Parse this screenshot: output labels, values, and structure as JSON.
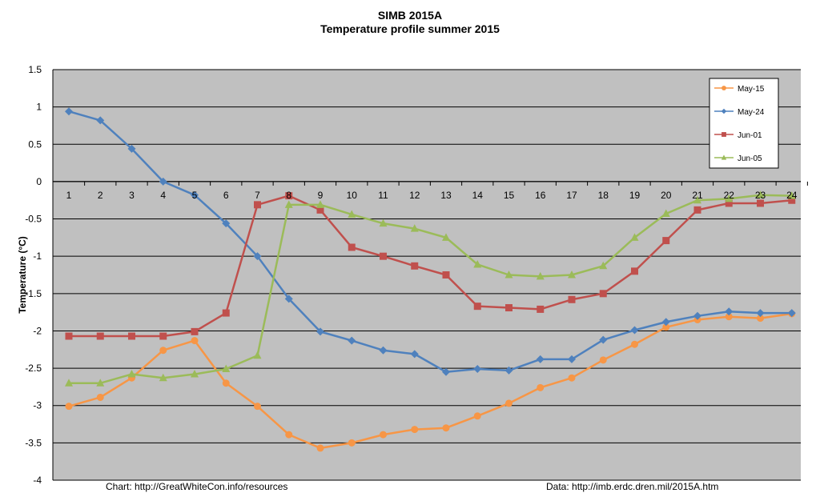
{
  "chart_data": {
    "type": "line",
    "title": "SIMB 2015A",
    "subtitle": "Temperature profile summer 2015",
    "xlabel": "",
    "ylabel": "Temperature (°C)",
    "ylim": [
      -4,
      1.5
    ],
    "yticks": [
      1.5,
      1,
      0.5,
      0,
      -0.5,
      -1,
      -1.5,
      -2,
      -2.5,
      -3,
      -3.5,
      -4
    ],
    "ytick_labels": [
      "1.5",
      "1",
      "0.5",
      "0",
      "-0.5",
      "-1",
      "-1.5",
      "-2",
      "-2.5",
      "-3",
      "-3.5",
      "-4"
    ],
    "categories": [
      "1",
      "2",
      "3",
      "4",
      "5",
      "6",
      "7",
      "8",
      "9",
      "10",
      "11",
      "12",
      "13",
      "14",
      "15",
      "16",
      "17",
      "18",
      "19",
      "20",
      "21",
      "22",
      "23",
      "24"
    ],
    "grid": true,
    "legend_position": "top-right",
    "series": [
      {
        "name": "May-15",
        "color": "#f79646",
        "marker": "circle",
        "values": [
          -3.01,
          -2.89,
          -2.63,
          -2.26,
          -2.13,
          -2.7,
          -3.01,
          -3.39,
          -3.57,
          -3.5,
          -3.39,
          -3.32,
          -3.3,
          -3.14,
          -2.97,
          -2.76,
          -2.63,
          -2.39,
          -2.18,
          -1.95,
          -1.85,
          -1.81,
          -1.83,
          -1.77
        ]
      },
      {
        "name": "May-24",
        "color": "#4f81bd",
        "marker": "diamond",
        "values": [
          0.94,
          0.82,
          0.44,
          0.0,
          -0.18,
          -0.56,
          -1.0,
          -1.57,
          -2.01,
          -2.13,
          -2.26,
          -2.31,
          -2.55,
          -2.51,
          -2.53,
          -2.38,
          -2.38,
          -2.12,
          -1.99,
          -1.88,
          -1.8,
          -1.74,
          -1.76,
          -1.76
        ]
      },
      {
        "name": "Jun-01",
        "color": "#c0504d",
        "marker": "square",
        "values": [
          -2.07,
          -2.07,
          -2.07,
          -2.07,
          -2.01,
          -1.76,
          -0.31,
          -0.19,
          -0.38,
          -0.88,
          -1.0,
          -1.13,
          -1.25,
          -1.67,
          -1.69,
          -1.71,
          -1.58,
          -1.5,
          -1.2,
          -0.79,
          -0.38,
          -0.29,
          -0.29,
          -0.25
        ]
      },
      {
        "name": "Jun-05",
        "color": "#9bbb59",
        "marker": "triangle",
        "values": [
          -2.7,
          -2.7,
          -2.58,
          -2.63,
          -2.58,
          -2.51,
          -2.33,
          -0.31,
          -0.31,
          -0.44,
          -0.56,
          -0.63,
          -0.75,
          -1.11,
          -1.25,
          -1.27,
          -1.25,
          -1.13,
          -0.75,
          -0.43,
          -0.25,
          -0.23,
          -0.18,
          -0.19
        ]
      }
    ],
    "annotations": {
      "left": "Chart:  http://GreatWhiteCon.info/resources",
      "right": "Data:  http://imb.erdc.dren.mil/2015A.htm"
    }
  }
}
